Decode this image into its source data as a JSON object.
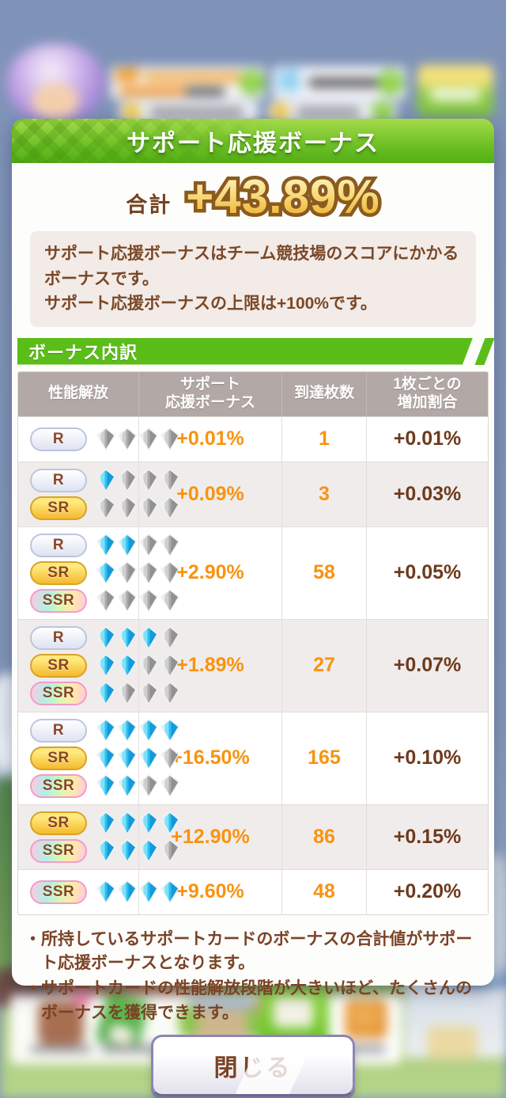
{
  "dialog": {
    "title": "サポート応援ボーナス",
    "total_label": "合計",
    "total_value": "+43.89%",
    "info_lines": [
      "サポート応援ボーナスはチーム競技場のスコアにかかるボーナスです。",
      "サポート応援ボーナスの上限は+100%です。"
    ],
    "section_title": "ボーナス内訳",
    "notes": [
      "・所持しているサポートカードのボーナスの合計値がサポート応援ボーナスとなります。",
      "・サポートカードの性能解放段階が大きいほど、たくさんのボーナスを獲得できます。"
    ],
    "close_label": "閉じる"
  },
  "table": {
    "diamond_slots": 4,
    "headers": [
      [
        "性能解放"
      ],
      [
        "サポート",
        "応援ボーナス"
      ],
      [
        "到達枚数"
      ],
      [
        "1枚ごとの",
        "増加割合"
      ]
    ],
    "rows": [
      {
        "badges": [
          {
            "rarity": "R",
            "unlocked": 0
          }
        ],
        "bonus": "+0.01%",
        "count": "1",
        "per_card": "+0.01%"
      },
      {
        "badges": [
          {
            "rarity": "R",
            "unlocked": 1
          },
          {
            "rarity": "SR",
            "unlocked": 0
          }
        ],
        "bonus": "+0.09%",
        "count": "3",
        "per_card": "+0.03%"
      },
      {
        "badges": [
          {
            "rarity": "R",
            "unlocked": 2
          },
          {
            "rarity": "SR",
            "unlocked": 1
          },
          {
            "rarity": "SSR",
            "unlocked": 0
          }
        ],
        "bonus": "+2.90%",
        "count": "58",
        "per_card": "+0.05%"
      },
      {
        "badges": [
          {
            "rarity": "R",
            "unlocked": 3
          },
          {
            "rarity": "SR",
            "unlocked": 2
          },
          {
            "rarity": "SSR",
            "unlocked": 1
          }
        ],
        "bonus": "+1.89%",
        "count": "27",
        "per_card": "+0.07%"
      },
      {
        "badges": [
          {
            "rarity": "R",
            "unlocked": 4
          },
          {
            "rarity": "SR",
            "unlocked": 3
          },
          {
            "rarity": "SSR",
            "unlocked": 2
          }
        ],
        "bonus": "+16.50%",
        "count": "165",
        "per_card": "+0.10%"
      },
      {
        "badges": [
          {
            "rarity": "SR",
            "unlocked": 4
          },
          {
            "rarity": "SSR",
            "unlocked": 3
          }
        ],
        "bonus": "+12.90%",
        "count": "86",
        "per_card": "+0.15%"
      },
      {
        "badges": [
          {
            "rarity": "SSR",
            "unlocked": 4
          }
        ],
        "bonus": "+9.60%",
        "count": "48",
        "per_card": "+0.20%"
      }
    ]
  },
  "colors": {
    "accent_green": "#5bbd17",
    "bonus_orange": "#f9930f",
    "per_card_brown": "#6e3a1d",
    "gold_text": "#eeb434",
    "header_taupe": "#b2a8a5"
  }
}
